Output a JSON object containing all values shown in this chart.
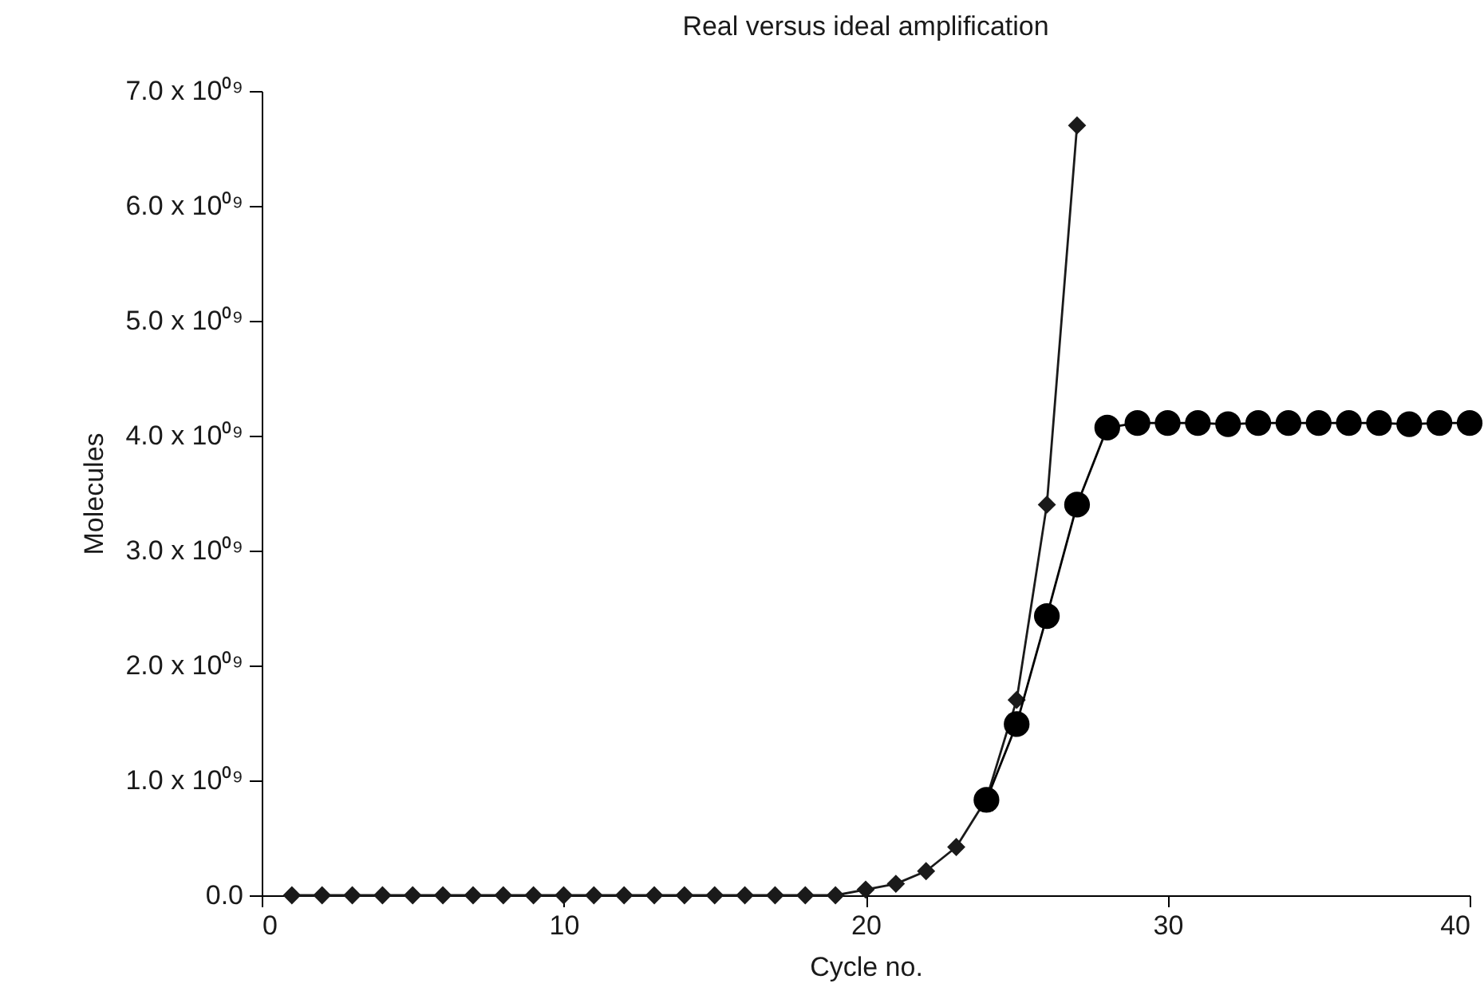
{
  "chart_data": {
    "type": "line",
    "title": "Real versus ideal amplification",
    "xlabel": "Cycle no.",
    "ylabel": "Molecules",
    "xlim": [
      0,
      40
    ],
    "xticks": [
      0,
      10,
      20,
      30,
      40
    ],
    "ylim": [
      0,
      7000000000
    ],
    "yticks": [
      {
        "value": 0,
        "label": "0.0"
      },
      {
        "value": 1000000000,
        "label": "1.0 x 10⁰⁹"
      },
      {
        "value": 2000000000,
        "label": "2.0 x 10⁰⁹"
      },
      {
        "value": 3000000000,
        "label": "3.0 x 10⁰⁹"
      },
      {
        "value": 4000000000,
        "label": "4.0 x 10⁰⁹"
      },
      {
        "value": 5000000000,
        "label": "5.0 x 10⁰⁹"
      },
      {
        "value": 6000000000,
        "label": "6.0 x 10⁰⁹"
      },
      {
        "value": 7000000000,
        "label": "7.0 x 10⁰⁹"
      }
    ],
    "grid": false,
    "series": [
      {
        "color": "#1a1a1a",
        "marker": "diamond",
        "x": [
          1,
          2,
          3,
          4,
          5,
          6,
          7,
          8,
          9,
          10,
          11,
          12,
          13,
          14,
          15,
          16,
          17,
          18,
          19,
          20,
          21,
          22,
          23,
          24,
          25,
          26,
          27
        ],
        "values": [
          0,
          0,
          0,
          0,
          0,
          0,
          0,
          0,
          0,
          0,
          0,
          0,
          0,
          0,
          0,
          0,
          0,
          0,
          0,
          50000000,
          100000000,
          210000000,
          420000000,
          840000000,
          1700000000,
          3400000000,
          6700000000
        ]
      },
      {
        "color": "#000000",
        "marker": "circle",
        "x": [
          24,
          25,
          26,
          27,
          28,
          29,
          30,
          31,
          32,
          33,
          34,
          35,
          36,
          37,
          38,
          39,
          40
        ],
        "values": [
          830000000,
          1490000000,
          2430000000,
          3400000000,
          4070000000,
          4110000000,
          4110000000,
          4110000000,
          4100000000,
          4110000000,
          4110000000,
          4110000000,
          4110000000,
          4110000000,
          4100000000,
          4110000000,
          4110000000
        ]
      }
    ]
  }
}
